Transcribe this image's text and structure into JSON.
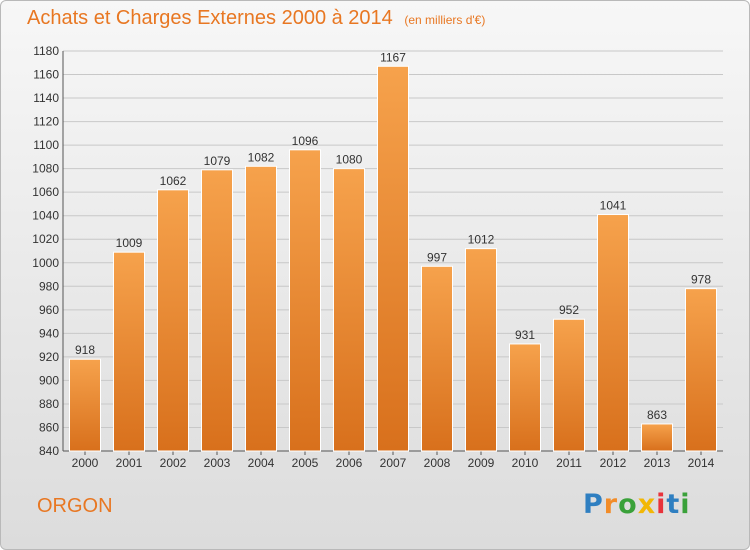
{
  "title": "Achats et Charges Externes 2000 à 2014",
  "subtitle": "(en milliers d'€)",
  "commune": "ORGON",
  "logo": {
    "letters": [
      "P",
      "r",
      "o",
      "x",
      "i",
      "t",
      "i"
    ],
    "colors": [
      "#2f7fc1",
      "#f28c28",
      "#3aa13a",
      "#f2b705",
      "#e8333b",
      "#2f7fc1",
      "#3aa13a"
    ]
  },
  "colors": {
    "accent": "#e87722",
    "bar_light": "#f6a24c",
    "bar_dark": "#d8701c",
    "grid": "#c8c8c8"
  },
  "chart_data": {
    "type": "bar",
    "title": "Achats et Charges Externes 2000 à 2014",
    "subtitle": "(en milliers d'€)",
    "categories": [
      "2000",
      "2001",
      "2002",
      "2003",
      "2004",
      "2005",
      "2006",
      "2007",
      "2008",
      "2009",
      "2010",
      "2011",
      "2012",
      "2013",
      "2014"
    ],
    "values": [
      918,
      1009,
      1062,
      1079,
      1082,
      1096,
      1080,
      1167,
      997,
      1012,
      931,
      952,
      1041,
      863,
      978
    ],
    "ylim": [
      840,
      1180
    ],
    "yticks": [
      840,
      860,
      880,
      900,
      920,
      940,
      960,
      980,
      1000,
      1020,
      1040,
      1060,
      1080,
      1100,
      1120,
      1140,
      1160,
      1180
    ],
    "grid": true,
    "xlabel": "",
    "ylabel": ""
  }
}
